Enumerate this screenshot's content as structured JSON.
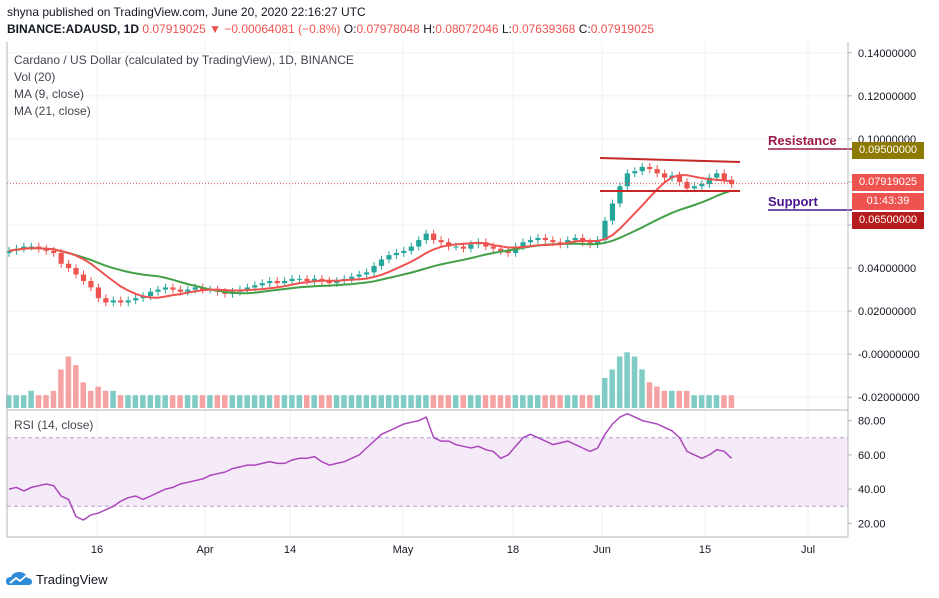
{
  "header": {
    "published": "shyna published on TradingView.com, June 20, 2020 22:16:27 UTC",
    "symbol": "BINANCE:ADAUSD, 1D",
    "last": "0.07919025",
    "change": "▼ −0.00064081 (−0.8%)",
    "o_label": "O:",
    "o_value": "0.07978048",
    "h_label": "H:",
    "h_value": "0.08072046",
    "l_label": "L:",
    "l_value": "0.07639368",
    "c_label": "C:",
    "c_value": "0.07919025"
  },
  "legend": {
    "title": "Cardano / US Dollar (calculated by TradingView), 1D, BINANCE",
    "vol": "Vol (20)",
    "ma9": "MA (9, close)",
    "ma21": "MA (21, close)",
    "rsi": "RSI (14, close)"
  },
  "annotations": {
    "resistance": "Resistance",
    "support": "Support",
    "resistance_price": "0.09500000",
    "support_price": "0.06500000",
    "current_price": "0.07919025",
    "countdown": "01:43:39"
  },
  "colors": {
    "up": "#26a69a",
    "down": "#ef5350",
    "ma9": "#ef5350",
    "ma21": "#43a047",
    "resistance": "#9c1a4a",
    "support": "#6a1b9a",
    "resistance_box": "#8d7a00",
    "support_box": "#b71c1c",
    "rsi_line": "#ab47bc"
  },
  "footer": {
    "brand": "TradingView"
  },
  "chart_data": [
    {
      "type": "candlestick",
      "x_ticks": [
        "16",
        "Apr",
        "14",
        "May",
        "18",
        "Jun",
        "15",
        "Jul"
      ],
      "y_ticks": [
        "0.14000000",
        "0.12000000",
        "0.10000000",
        "0.08000000",
        "0.06000000",
        "0.04000000",
        "0.02000000",
        "-0.00000000",
        "-0.02000000"
      ],
      "ylim": [
        -0.025,
        0.145
      ],
      "grid": true,
      "series": [
        {
          "name": "Cardano / US Dollar",
          "close_path": [
            [
              0.048,
              0.049,
              0.05,
              0.05,
              0.049,
              0.048,
              0.047,
              0.042,
              0.04,
              0.037,
              0.034,
              0.031,
              0.026,
              0.024,
              0.025,
              0.024,
              0.025,
              0.026,
              0.027,
              0.029,
              0.03,
              0.031,
              0.03,
              0.029,
              0.03,
              0.031,
              0.03,
              0.03,
              0.029,
              0.028,
              0.029,
              0.03,
              0.031,
              0.032,
              0.033,
              0.034,
              0.033,
              0.034,
              0.035,
              0.035,
              0.034,
              0.035,
              0.034,
              0.033,
              0.034,
              0.035,
              0.036,
              0.037,
              0.038,
              0.041,
              0.044,
              0.046,
              0.047,
              0.048,
              0.05,
              0.053,
              0.056,
              0.053,
              0.052,
              0.05,
              0.05,
              0.049,
              0.051,
              0.052,
              0.05,
              0.049,
              0.048,
              0.047,
              0.05,
              0.052,
              0.053,
              0.054,
              0.053,
              0.052,
              0.051,
              0.053,
              0.054,
              0.052,
              0.051,
              0.053,
              0.062,
              0.07,
              0.078,
              0.084,
              0.085,
              0.087,
              0.086,
              0.084,
              0.082,
              0.083,
              0.08,
              0.077,
              0.078,
              0.079,
              0.082,
              0.084,
              0.081,
              0.079
            ]
          ]
        },
        {
          "name": "MA (9, close)"
        },
        {
          "name": "MA (21, close)"
        }
      ],
      "levels": [
        {
          "name": "Resistance",
          "value": 0.095
        },
        {
          "name": "Support",
          "value": 0.065
        }
      ]
    },
    {
      "type": "bar",
      "name": "Vol (20)",
      "values": [
        3,
        3,
        3,
        4,
        3,
        3,
        4,
        9,
        12,
        10,
        6,
        4,
        5,
        4,
        4,
        3,
        3,
        3,
        3,
        3,
        3,
        3,
        3,
        3,
        3,
        3,
        3,
        3,
        3,
        3,
        3,
        3,
        3,
        3,
        3,
        3,
        3,
        3,
        3,
        3,
        3,
        3,
        3,
        3,
        3,
        3,
        3,
        3,
        3,
        3,
        3,
        3,
        3,
        3,
        3,
        3,
        3,
        3,
        3,
        3,
        3,
        3,
        3,
        3,
        3,
        3,
        3,
        3,
        3,
        3,
        3,
        3,
        3,
        3,
        3,
        3,
        3,
        3,
        3,
        3,
        7,
        9,
        12,
        13,
        12,
        9,
        6,
        5,
        4,
        4,
        4,
        4,
        3,
        3,
        3,
        3,
        3,
        3
      ]
    },
    {
      "type": "line",
      "name": "RSI (14, close)",
      "y_ticks": [
        "80.00",
        "60.00",
        "40.00",
        "20.00"
      ],
      "ylim": [
        15,
        85
      ],
      "bands": [
        30,
        70
      ],
      "values": [
        40,
        41,
        39,
        41,
        42,
        43,
        42,
        36,
        34,
        24,
        22,
        25,
        26,
        28,
        30,
        33,
        35,
        36,
        34,
        36,
        38,
        40,
        41,
        43,
        44,
        45,
        46,
        48,
        49,
        50,
        52,
        53,
        54,
        54,
        55,
        56,
        55,
        55,
        57,
        58,
        58,
        59,
        56,
        54,
        55,
        56,
        58,
        60,
        64,
        68,
        72,
        74,
        76,
        78,
        79,
        80,
        82,
        70,
        68,
        68,
        66,
        65,
        64,
        65,
        63,
        62,
        58,
        60,
        65,
        70,
        72,
        70,
        68,
        66,
        67,
        68,
        66,
        64,
        62,
        64,
        72,
        78,
        82,
        84,
        82,
        80,
        79,
        78,
        76,
        74,
        70,
        62,
        60,
        58,
        60,
        63,
        62,
        58
      ]
    }
  ]
}
